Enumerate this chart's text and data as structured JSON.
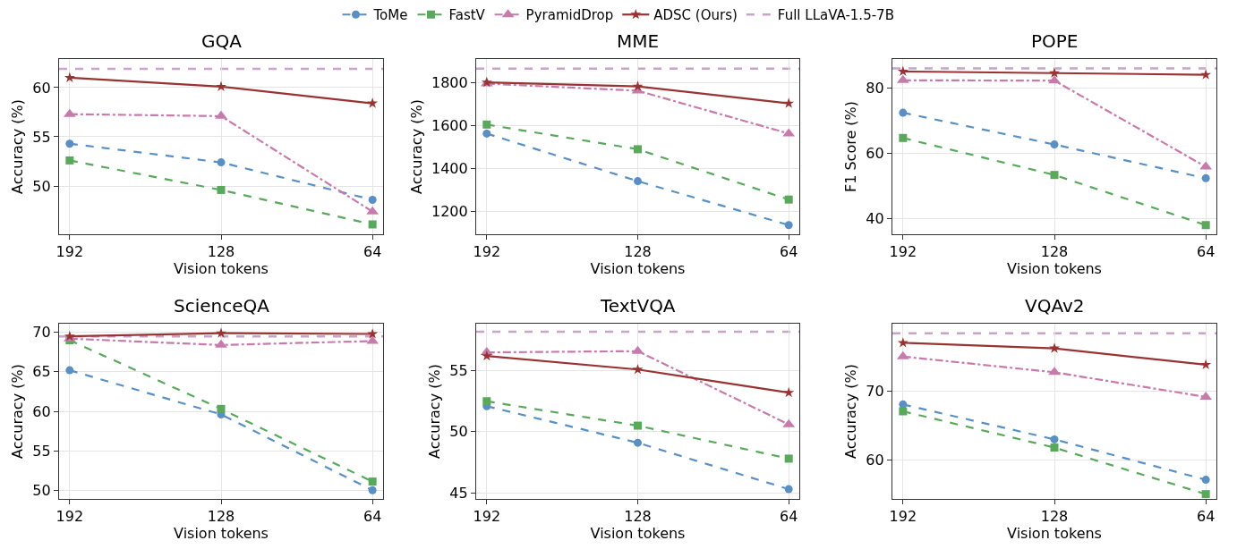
{
  "chart_data": [
    {
      "type": "line",
      "title": "GQA",
      "xlabel": "Vision tokens",
      "ylabel": "Accuracy (%)",
      "categories": [
        "192",
        "128",
        "64"
      ],
      "ylim": [
        45.1,
        62.9
      ],
      "yticks": [
        50,
        55,
        60
      ],
      "grid": true,
      "legend": "top",
      "series": [
        {
          "name": "ToMe",
          "color": "#5a8fc4",
          "marker": "circle",
          "line_style": "dashed",
          "values": [
            54.3,
            52.4,
            48.6
          ]
        },
        {
          "name": "FastV",
          "color": "#5aa85c",
          "marker": "square",
          "line_style": "dashed",
          "values": [
            52.6,
            49.6,
            46.1
          ]
        },
        {
          "name": "PyramidDrop",
          "color": "#c77bab",
          "marker": "triangle",
          "line_style": "dashdot",
          "values": [
            57.3,
            57.1,
            47.4
          ]
        },
        {
          "name": "ADSC (Ours)",
          "color": "#993333",
          "marker": "star",
          "line_style": "solid",
          "values": [
            61.0,
            60.1,
            58.4
          ]
        }
      ],
      "ref_lines": [
        {
          "axis": "y",
          "value": 61.9,
          "label": "Full LLaVA-1.5-7B",
          "color": "#c9a3c9",
          "line_style": "dashed"
        }
      ]
    },
    {
      "type": "line",
      "title": "MME",
      "xlabel": "Vision tokens",
      "ylabel": "Accuracy (%)",
      "categories": [
        "192",
        "128",
        "64"
      ],
      "ylim": [
        1092,
        1910
      ],
      "yticks": [
        1200,
        1400,
        1600,
        1800
      ],
      "grid": true,
      "series": [
        {
          "color": "#5a8fc4",
          "marker": "circle",
          "line_style": "dashed",
          "values": [
            1562,
            1340,
            1135
          ]
        },
        {
          "color": "#5aa85c",
          "marker": "square",
          "line_style": "dashed",
          "values": [
            1604,
            1489,
            1254
          ]
        },
        {
          "color": "#c77bab",
          "marker": "triangle",
          "line_style": "dashdot",
          "values": [
            1795,
            1762,
            1562
          ]
        },
        {
          "color": "#993333",
          "marker": "star",
          "line_style": "solid",
          "values": [
            1801,
            1782,
            1703
          ]
        }
      ],
      "ref_lines": [
        {
          "axis": "y",
          "value": 1865,
          "color": "#c9a3c9",
          "line_style": "dashed"
        }
      ]
    },
    {
      "type": "line",
      "title": "POPE",
      "xlabel": "Vision tokens",
      "ylabel": "F1 Score (%)",
      "categories": [
        "192",
        "128",
        "64"
      ],
      "ylim": [
        35.3,
        88.8
      ],
      "yticks": [
        40,
        60,
        80
      ],
      "grid": true,
      "series": [
        {
          "color": "#5a8fc4",
          "marker": "circle",
          "line_style": "dashed",
          "values": [
            72.4,
            62.7,
            52.4
          ]
        },
        {
          "color": "#5aa85c",
          "marker": "square",
          "line_style": "dashed",
          "values": [
            64.7,
            53.4,
            38.1
          ]
        },
        {
          "color": "#c77bab",
          "marker": "triangle",
          "line_style": "dashdot",
          "values": [
            82.3,
            82.2,
            55.9
          ]
        },
        {
          "color": "#993333",
          "marker": "star",
          "line_style": "solid",
          "values": [
            85.0,
            84.5,
            84.0
          ]
        }
      ],
      "ref_lines": [
        {
          "axis": "y",
          "value": 85.9,
          "color": "#c9a3c9",
          "line_style": "dashed"
        }
      ]
    },
    {
      "type": "line",
      "title": "ScienceQA",
      "xlabel": "Vision tokens",
      "ylabel": "Accuracy (%)",
      "categories": [
        "192",
        "128",
        "64"
      ],
      "ylim": [
        48.9,
        71.1
      ],
      "yticks": [
        50,
        55,
        60,
        65,
        70
      ],
      "grid": true,
      "series": [
        {
          "color": "#5a8fc4",
          "marker": "circle",
          "line_style": "dashed",
          "values": [
            65.2,
            59.6,
            50.0
          ]
        },
        {
          "color": "#5aa85c",
          "marker": "square",
          "line_style": "dashed",
          "values": [
            69.0,
            60.3,
            51.1
          ]
        },
        {
          "color": "#c77bab",
          "marker": "triangle",
          "line_style": "dashdot",
          "values": [
            69.2,
            68.4,
            68.9
          ]
        },
        {
          "color": "#993333",
          "marker": "star",
          "line_style": "solid",
          "values": [
            69.5,
            69.9,
            69.8
          ]
        }
      ],
      "ref_lines": [
        {
          "axis": "y",
          "value": 69.5,
          "color": "#c9a3c9",
          "line_style": "dashed"
        }
      ]
    },
    {
      "type": "line",
      "title": "TextVQA",
      "xlabel": "Vision tokens",
      "ylabel": "Accuracy (%)",
      "categories": [
        "192",
        "128",
        "64"
      ],
      "ylim": [
        44.5,
        58.85
      ],
      "yticks": [
        45,
        50,
        55
      ],
      "grid": true,
      "series": [
        {
          "color": "#5a8fc4",
          "marker": "circle",
          "line_style": "dashed",
          "values": [
            52.1,
            49.1,
            45.3
          ]
        },
        {
          "color": "#5aa85c",
          "marker": "square",
          "line_style": "dashed",
          "values": [
            52.5,
            50.5,
            47.8
          ]
        },
        {
          "color": "#c77bab",
          "marker": "triangle",
          "line_style": "dashdot",
          "values": [
            56.5,
            56.6,
            50.6
          ]
        },
        {
          "color": "#993333",
          "marker": "star",
          "line_style": "solid",
          "values": [
            56.2,
            55.1,
            53.2
          ]
        }
      ],
      "ref_lines": [
        {
          "axis": "y",
          "value": 58.2,
          "color": "#c9a3c9",
          "line_style": "dashed"
        }
      ]
    },
    {
      "type": "line",
      "title": "VQAv2",
      "xlabel": "Vision tokens",
      "ylabel": "Accuracy (%)",
      "categories": [
        "192",
        "128",
        "64"
      ],
      "ylim": [
        54.3,
        79.9
      ],
      "yticks": [
        60,
        70
      ],
      "grid": true,
      "series": [
        {
          "color": "#5a8fc4",
          "marker": "circle",
          "line_style": "dashed",
          "values": [
            68.1,
            63.0,
            57.1
          ]
        },
        {
          "color": "#5aa85c",
          "marker": "square",
          "line_style": "dashed",
          "values": [
            67.1,
            61.8,
            55.0
          ]
        },
        {
          "color": "#c77bab",
          "marker": "triangle",
          "line_style": "dashdot",
          "values": [
            75.1,
            72.8,
            69.2
          ]
        },
        {
          "color": "#993333",
          "marker": "star",
          "line_style": "solid",
          "values": [
            77.1,
            76.3,
            73.9
          ]
        }
      ],
      "ref_lines": [
        {
          "axis": "y",
          "value": 78.5,
          "color": "#c9a3c9",
          "line_style": "dashed"
        }
      ]
    }
  ]
}
